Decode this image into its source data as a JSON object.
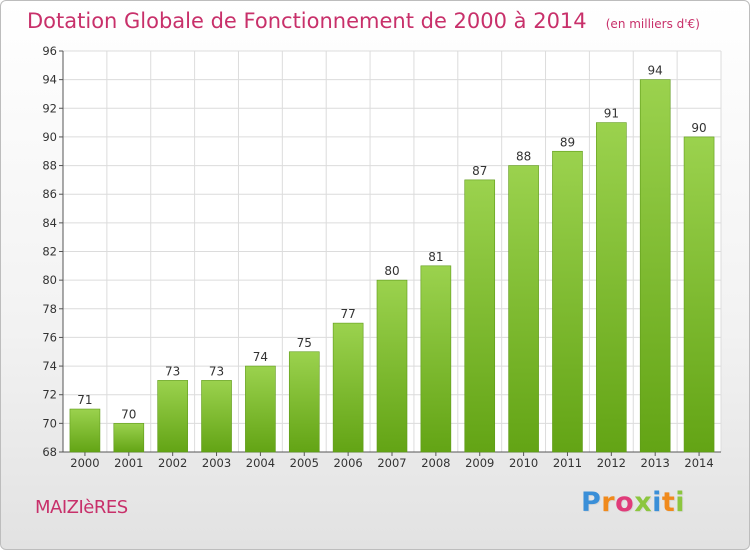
{
  "header": {
    "title": "Dotation Globale de Fonctionnement de 2000 à 2014",
    "subtitle": "(en milliers d'€)"
  },
  "footer": {
    "commune": "MAIZIèRES",
    "logo_text": "Proxiti",
    "logo_colors": [
      "#3a8fd8",
      "#f08a1c",
      "#e03c7a",
      "#8cc63f",
      "#3a8fd8",
      "#f08a1c",
      "#8cc63f"
    ]
  },
  "colors": {
    "bar_top": "#9bd24e",
    "bar_bottom": "#63a415",
    "bar_stroke": "#5e9a18",
    "grid": "#dcdcdc",
    "accent": "#c8306a"
  },
  "chart_data": {
    "type": "bar",
    "categories": [
      "2000",
      "2001",
      "2002",
      "2003",
      "2004",
      "2005",
      "2006",
      "2007",
      "2008",
      "2009",
      "2010",
      "2011",
      "2012",
      "2013",
      "2014"
    ],
    "values": [
      71,
      70,
      73,
      73,
      74,
      75,
      77,
      80,
      81,
      87,
      88,
      89,
      91,
      94,
      90
    ],
    "ylim": [
      68,
      96
    ],
    "yticks": [
      68,
      70,
      72,
      74,
      76,
      78,
      80,
      82,
      84,
      86,
      88,
      90,
      92,
      94,
      96
    ],
    "data_labels": true,
    "grid": true,
    "xlabel": "",
    "ylabel": ""
  }
}
